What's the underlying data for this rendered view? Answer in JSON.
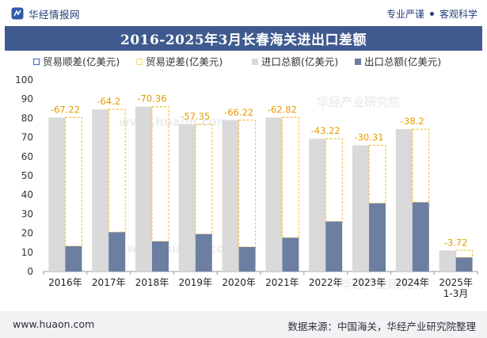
{
  "header": {
    "brand_name": "华经情报网",
    "tagline_left": "专业严谨",
    "tagline_right": "客观科学"
  },
  "chart_data": {
    "type": "bar",
    "title": "2016-2025年3月长春海关进出口差额",
    "categories": [
      "2016年",
      "2017年",
      "2018年",
      "2019年",
      "2020年",
      "2021年",
      "2022年",
      "2023年",
      "2024年",
      "2025年\n1-3月"
    ],
    "ylim": [
      0,
      100
    ],
    "yticks": [
      0,
      10,
      20,
      30,
      40,
      50,
      60,
      70,
      80,
      90,
      100
    ],
    "legend_position": "top",
    "series": [
      {
        "name": "贸易顺差(亿美元)",
        "values": [
          null,
          null,
          null,
          null,
          null,
          null,
          null,
          null,
          null,
          null
        ],
        "color": "#4472c4",
        "style": "outline"
      },
      {
        "name": "贸易逆差(亿美元)",
        "values": [
          -67.22,
          -64.2,
          -70.36,
          -57.35,
          -66.22,
          -62.82,
          -43.22,
          -30.31,
          -38.2,
          -3.72
        ],
        "color": "#f5c242",
        "style": "dashed-outline"
      },
      {
        "name": "进口总额(亿美元)",
        "values": [
          80.4,
          84.6,
          86.0,
          76.9,
          79.0,
          80.4,
          69.3,
          65.9,
          74.3,
          11.0
        ],
        "color": "#d9d9d9",
        "style": "fill"
      },
      {
        "name": "出口总额(亿美元)",
        "values": [
          13.2,
          20.5,
          15.7,
          19.5,
          12.8,
          17.6,
          26.1,
          35.6,
          36.1,
          7.3
        ],
        "color": "#6d7ea3",
        "style": "fill"
      }
    ]
  },
  "watermarks": [
    "华经产业研究院",
    "www.huaon.com"
  ],
  "footer": {
    "site": "www.huaon.com",
    "source": "数据来源：中国海关，华经产业研究院整理"
  }
}
